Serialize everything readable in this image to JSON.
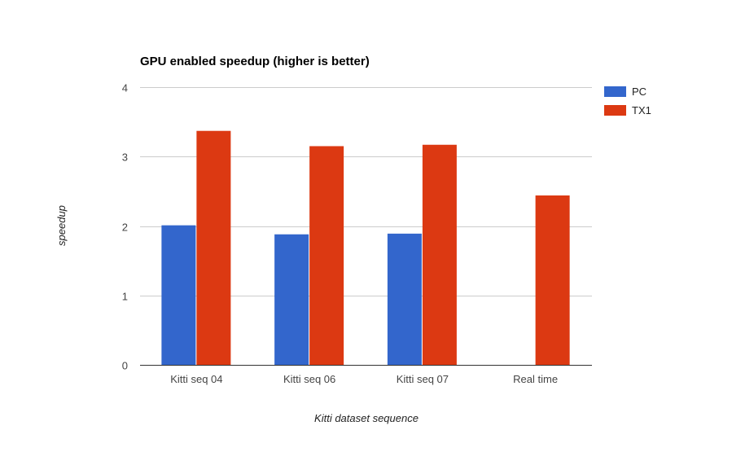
{
  "chart_data": {
    "type": "bar",
    "title": "GPU enabled speedup (higher is better)",
    "xlabel": "Kitti dataset sequence",
    "ylabel": "speedup",
    "categories": [
      "Kitti seq 04",
      "Kitti seq 06",
      "Kitti seq 07",
      "Real time"
    ],
    "series": [
      {
        "name": "PC",
        "values": [
          2.01,
          1.88,
          1.89,
          null
        ],
        "color": "#3366cc"
      },
      {
        "name": "TX1",
        "values": [
          3.37,
          3.15,
          3.17,
          2.44
        ],
        "color": "#dc3912"
      }
    ],
    "ylim": [
      0,
      4
    ],
    "yticks": [
      "0",
      "1",
      "2",
      "3",
      "4"
    ],
    "grid": true,
    "legend_position": "right"
  }
}
